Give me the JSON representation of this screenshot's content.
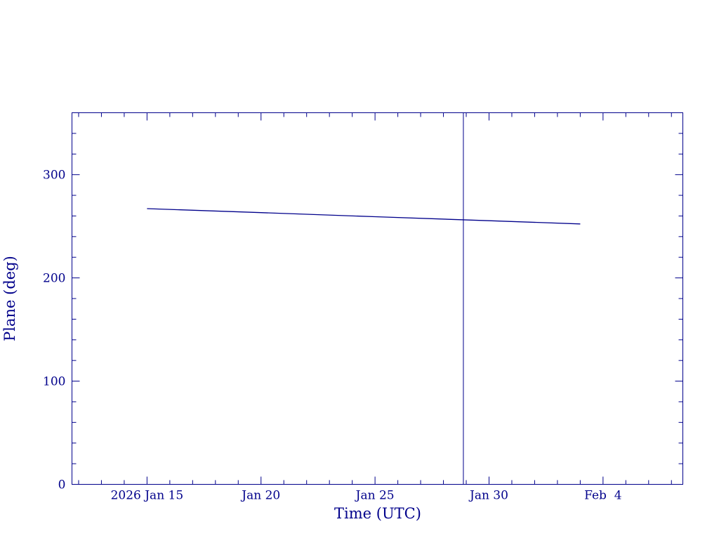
{
  "chart_data": {
    "type": "line",
    "title": "",
    "xlabel": "Time (UTC)",
    "ylabel": "Plane (deg)",
    "x_range": [
      "2026-01-11T17:00",
      "2026-02-07T12:00"
    ],
    "ylim": [
      0,
      360
    ],
    "y_ticks": [
      0,
      100,
      200,
      300
    ],
    "y_tick_labels": [
      "0",
      "100",
      "200",
      "300"
    ],
    "x_ticks": [
      "2026-01-15",
      "2026-01-20",
      "2026-01-25",
      "2026-01-30",
      "2026-02-04"
    ],
    "x_tick_labels": [
      "2026 Jan 15",
      "Jan 20",
      "Jan 25",
      "Jan 30",
      "Feb  4"
    ],
    "series": [
      {
        "x": [
          "2026-01-15T00:00",
          "2026-01-20T00:00",
          "2026-01-25T00:00",
          "2026-01-30T00:00",
          "2026-02-03T00:00"
        ],
        "y": [
          267.1,
          263.2,
          259.3,
          255.4,
          252.3
        ]
      }
    ],
    "vertical_marker": {
      "x": "2026-01-28T21:00"
    },
    "grid": false,
    "line_color": "#00008b"
  }
}
